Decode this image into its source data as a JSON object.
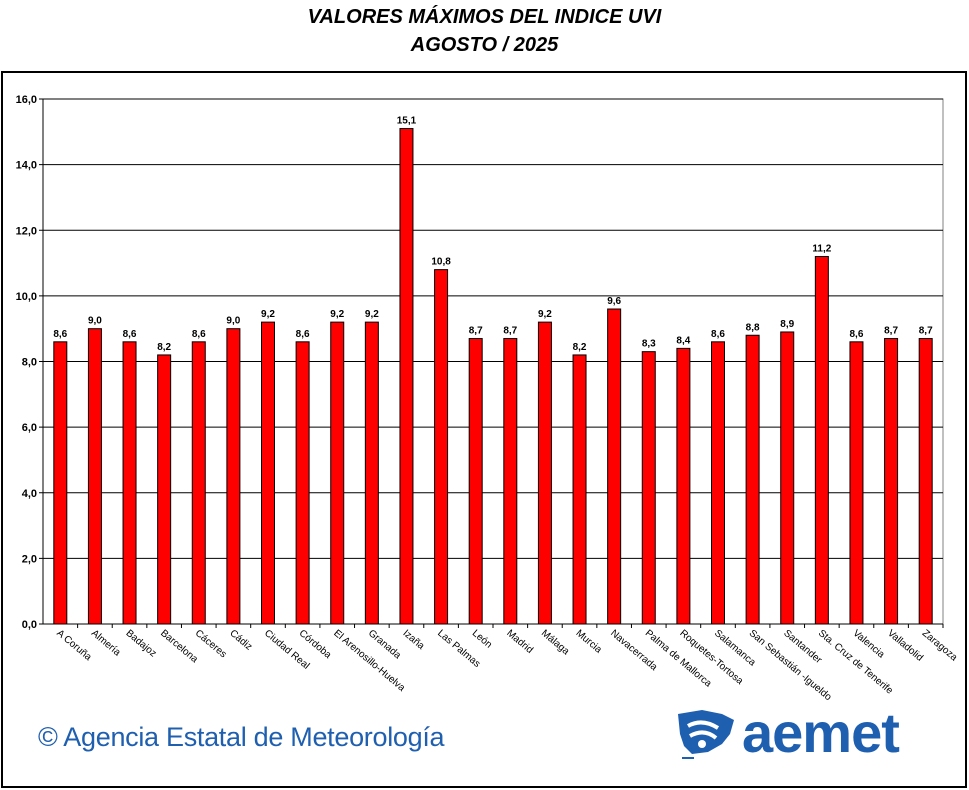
{
  "title": "VALORES MÁXIMOS DEL INDICE UVI",
  "subtitle": "AGOSTO / 2025",
  "footer": {
    "credit": "© Agencia Estatal de Meteorología",
    "logo_text": "aemet",
    "brand_color": "#1f5fb0"
  },
  "colors": {
    "bar": "#ff0000",
    "bar_outline": "#000000",
    "grid": "#000000",
    "plot_border": "#808080"
  },
  "chart_data": {
    "type": "bar",
    "title": "VALORES MÁXIMOS DEL INDICE UVI",
    "subtitle": "AGOSTO / 2025",
    "xlabel": "",
    "ylabel": "",
    "ylim": [
      0,
      16
    ],
    "yticks": [
      "0,0",
      "2,0",
      "4,0",
      "6,0",
      "8,0",
      "10,0",
      "12,0",
      "14,0",
      "16,0"
    ],
    "grid": true,
    "legend": "none",
    "categories": [
      "A Coruña",
      "Almería",
      "Badajoz",
      "Barcelona",
      "Cáceres",
      "Cádiz",
      "Ciudad Real",
      "Córdoba",
      "El Arenosillo-Huelva",
      "Granada",
      "Izaña",
      "Las Palmas",
      "León",
      "Madrid",
      "Málaga",
      "Murcia",
      "Navacerrada",
      "Palma de Mallorca",
      "Roquetes-Tortosa",
      "Salamanca",
      "San Sebastián -Igueldo",
      "Santander",
      "Sta. Cruz de Tenerife",
      "Valencia",
      "Valladolid",
      "Zaragoza"
    ],
    "values": [
      8.6,
      9.0,
      8.6,
      8.2,
      8.6,
      9.0,
      9.2,
      8.6,
      9.2,
      9.2,
      15.1,
      10.8,
      8.7,
      8.7,
      9.2,
      8.2,
      9.6,
      8.3,
      8.4,
      8.6,
      8.8,
      8.9,
      11.2,
      8.6,
      8.7,
      8.7
    ],
    "data_labels": [
      "8,6",
      "9,0",
      "8,6",
      "8,2",
      "8,6",
      "9,0",
      "9,2",
      "8,6",
      "9,2",
      "9,2",
      "15,1",
      "10,8",
      "8,7",
      "8,7",
      "9,2",
      "8,2",
      "9,6",
      "8,3",
      "8,4",
      "8,6",
      "8,8",
      "8,9",
      "11,2",
      "8,6",
      "8,7",
      "8,7"
    ]
  }
}
